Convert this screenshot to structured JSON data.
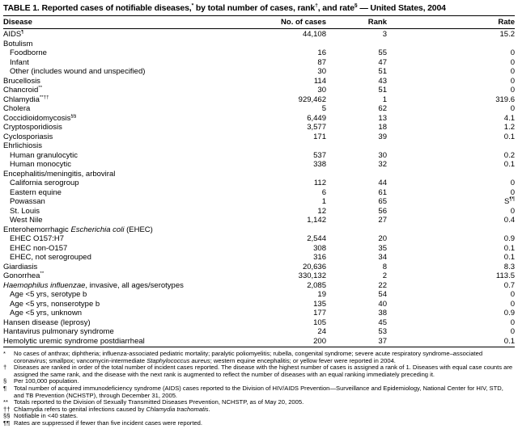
{
  "title": [
    {
      "t": "TABLE 1.  Reported cases of notifiable diseases,"
    },
    {
      "t": "*",
      "s": "sup"
    },
    {
      "t": " by total number of cases, rank"
    },
    {
      "t": "†",
      "s": "sup"
    },
    {
      "t": ", and rate"
    },
    {
      "t": "§",
      "s": "sup"
    },
    {
      "t": " — United States, 2004"
    }
  ],
  "table": {
    "columns": {
      "disease": "Disease",
      "cases": "No. of cases",
      "rank": "Rank",
      "rate": "Rate"
    },
    "rows": [
      {
        "label": [
          {
            "t": "AIDS"
          },
          {
            "t": "¶",
            "s": "sup"
          }
        ],
        "cases": "44,108",
        "rank": "3",
        "rate": "15.2",
        "indent": 0
      },
      {
        "label": "Botulism",
        "cases": "",
        "rank": "",
        "rate": "",
        "indent": 0
      },
      {
        "label": "Foodborne",
        "cases": "16",
        "rank": "55",
        "rate": "0",
        "indent": 1
      },
      {
        "label": "Infant",
        "cases": "87",
        "rank": "47",
        "rate": "0",
        "indent": 1
      },
      {
        "label": "Other (includes wound and unspecified)",
        "cases": "30",
        "rank": "51",
        "rate": "0",
        "indent": 1
      },
      {
        "label": "Brucellosis",
        "cases": "114",
        "rank": "43",
        "rate": "0",
        "indent": 0
      },
      {
        "label": [
          {
            "t": "Chancroid"
          },
          {
            "t": "**",
            "s": "sup"
          }
        ],
        "cases": "30",
        "rank": "51",
        "rate": "0",
        "indent": 0
      },
      {
        "label": [
          {
            "t": "Chlamydia"
          },
          {
            "t": "**††",
            "s": "sup"
          }
        ],
        "cases": "929,462",
        "rank": "1",
        "rate": "319.6",
        "indent": 0
      },
      {
        "label": "Cholera",
        "cases": "5",
        "rank": "62",
        "rate": "0",
        "indent": 0
      },
      {
        "label": [
          {
            "t": "Coccidioidomycosis"
          },
          {
            "t": "§§",
            "s": "sup"
          }
        ],
        "cases": "6,449",
        "rank": "13",
        "rate": "4.1",
        "indent": 0
      },
      {
        "label": "Cryptosporidiosis",
        "cases": "3,577",
        "rank": "18",
        "rate": "1.2",
        "indent": 0
      },
      {
        "label": "Cyclosporiasis",
        "cases": "171",
        "rank": "39",
        "rate": "0.1",
        "indent": 0
      },
      {
        "label": "Ehrlichiosis",
        "cases": "",
        "rank": "",
        "rate": "",
        "indent": 0
      },
      {
        "label": "Human granulocytic",
        "cases": "537",
        "rank": "30",
        "rate": "0.2",
        "indent": 1
      },
      {
        "label": "Human monocytic",
        "cases": "338",
        "rank": "32",
        "rate": "0.1",
        "indent": 1
      },
      {
        "label": "Encephalitis/meningitis, arboviral",
        "cases": "",
        "rank": "",
        "rate": "",
        "indent": 0
      },
      {
        "label": "California serogroup",
        "cases": "112",
        "rank": "44",
        "rate": "0",
        "indent": 1
      },
      {
        "label": "Eastern equine",
        "cases": "6",
        "rank": "61",
        "rate": "0",
        "indent": 1
      },
      {
        "label": "Powassan",
        "cases": "1",
        "rank": "65",
        "rate": [
          {
            "t": "S"
          },
          {
            "t": "¶¶",
            "s": "sup"
          }
        ],
        "indent": 1
      },
      {
        "label": "St. Louis",
        "cases": "12",
        "rank": "56",
        "rate": "0",
        "indent": 1
      },
      {
        "label": "West Nile",
        "cases": "1,142",
        "rank": "27",
        "rate": "0.4",
        "indent": 1
      },
      {
        "label": [
          {
            "t": "Enterohemorrhagic "
          },
          {
            "t": "Escherichia coli",
            "s": "i"
          },
          {
            "t": " (EHEC)"
          }
        ],
        "cases": "",
        "rank": "",
        "rate": "",
        "indent": 0
      },
      {
        "label": "EHEC O157:H7",
        "cases": "2,544",
        "rank": "20",
        "rate": "0.9",
        "indent": 1
      },
      {
        "label": "EHEC non-O157",
        "cases": "308",
        "rank": "35",
        "rate": "0.1",
        "indent": 1
      },
      {
        "label": "EHEC, not serogrouped",
        "cases": "316",
        "rank": "34",
        "rate": "0.1",
        "indent": 1
      },
      {
        "label": "Giardiasis",
        "cases": "20,636",
        "rank": "8",
        "rate": "8.3",
        "indent": 0
      },
      {
        "label": [
          {
            "t": "Gonorrhea"
          },
          {
            "t": "**",
            "s": "sup"
          }
        ],
        "cases": "330,132",
        "rank": "2",
        "rate": "113.5",
        "indent": 0
      },
      {
        "label": [
          {
            "t": "Haemophilus influenzae",
            "s": "i"
          },
          {
            "t": ", invasive, all ages/serotypes"
          }
        ],
        "cases": "2,085",
        "rank": "22",
        "rate": "0.7",
        "indent": 0
      },
      {
        "label": "Age <5 yrs, serotype b",
        "cases": "19",
        "rank": "54",
        "rate": "0",
        "indent": 1
      },
      {
        "label": "Age <5 yrs, nonserotype b",
        "cases": "135",
        "rank": "40",
        "rate": "0",
        "indent": 1
      },
      {
        "label": "Age <5 yrs, unknown",
        "cases": "177",
        "rank": "38",
        "rate": "0.9",
        "indent": 1
      },
      {
        "label": "Hansen disease (leprosy)",
        "cases": "105",
        "rank": "45",
        "rate": "0",
        "indent": 0
      },
      {
        "label": "Hantavirus pulmonary syndrome",
        "cases": "24",
        "rank": "53",
        "rate": "0",
        "indent": 0
      },
      {
        "label": "Hemolytic uremic syndrome postdiarrheal",
        "cases": "200",
        "rank": "37",
        "rate": "0.1",
        "indent": 0
      }
    ]
  },
  "footnotes": [
    {
      "marker": "*",
      "text": [
        {
          "t": "No cases of anthrax; diphtheria; influenza-associated pediatric mortality; paralytic poliomyelitis; rubella, congenital syndrome; severe acute respiratory syndrome–associated coronavirus; smallpox; vancomycin-intermediate "
        },
        {
          "t": "Staphylococcus aureus",
          "s": "i"
        },
        {
          "t": "; western equine encephalitis; or yellow fever were reported in 2004."
        }
      ]
    },
    {
      "marker": "†",
      "text": "Diseases are ranked in order of the total number of incident cases reported. The disease with the highest number of cases is assigned a rank of 1. Diseases with equal case counts are assigned the same rank, and the disease with the next rank is augmented to reflect the number of diseases with an equal ranking immediately preceding it."
    },
    {
      "marker": "§",
      "text": "Per 100,000 population."
    },
    {
      "marker": "¶",
      "text": "Total number of acquired immunodeficiency syndrome (AIDS) cases reported to the Division of HIV/AIDS Prevention—Surveillance and Epidemiology, National Center for HIV, STD, and TB Prevention (NCHSTP), through December 31, 2005."
    },
    {
      "marker": "**",
      "text": "Totals reported to the Division of Sexually Transmitted Diseases Prevention, NCHSTP, as of May 20, 2005."
    },
    {
      "marker": "††",
      "text": [
        {
          "t": "Chlamydia refers to genital infections caused by "
        },
        {
          "t": "Chlamydia trachomatis",
          "s": "i"
        },
        {
          "t": "."
        }
      ]
    },
    {
      "marker": "§§",
      "text": "Notifiable in <40 states."
    },
    {
      "marker": "¶¶",
      "text": "Rates are suppressed if fewer than five incident cases were reported."
    }
  ]
}
